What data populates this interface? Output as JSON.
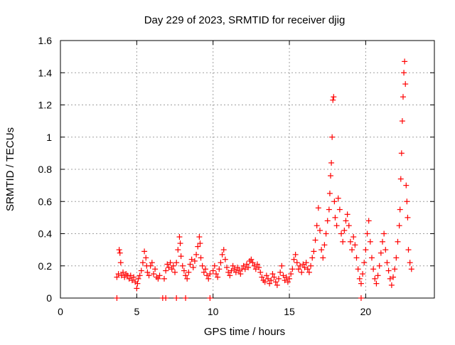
{
  "chart_data": {
    "type": "scatter",
    "title": "Day 229 of 2023, SRMTID for receiver djig",
    "xlabel": "GPS time / hours",
    "ylabel": "SRMTID / TECUs",
    "xlim": [
      0,
      24.5
    ],
    "ylim": [
      0,
      1.6
    ],
    "xticks": [
      0,
      5,
      10,
      15,
      20
    ],
    "xtick_labels": [
      "0",
      "5",
      "10",
      "15",
      "20"
    ],
    "yticks": [
      0,
      0.2,
      0.4,
      0.6,
      0.8,
      1.0,
      1.2,
      1.4,
      1.6
    ],
    "ytick_labels": [
      "0",
      "0.2",
      "0.4",
      "0.6",
      "0.8",
      "1",
      "1.2",
      "1.4",
      "1.6"
    ],
    "grid": true,
    "marker": "+",
    "color": "#ff0000",
    "series": [
      {
        "name": "SRMTID",
        "points": [
          [
            3.7,
            0.0
          ],
          [
            6.7,
            0.0
          ],
          [
            6.9,
            0.0
          ],
          [
            7.6,
            0.0
          ],
          [
            8.2,
            0.0
          ],
          [
            9.8,
            0.0
          ],
          [
            19.7,
            0.0
          ],
          [
            3.7,
            0.13
          ],
          [
            3.8,
            0.15
          ],
          [
            3.85,
            0.3
          ],
          [
            3.9,
            0.28
          ],
          [
            3.95,
            0.22
          ],
          [
            4.0,
            0.14
          ],
          [
            4.1,
            0.16
          ],
          [
            4.2,
            0.13
          ],
          [
            4.3,
            0.15
          ],
          [
            4.4,
            0.14
          ],
          [
            4.5,
            0.12
          ],
          [
            4.6,
            0.14
          ],
          [
            4.7,
            0.11
          ],
          [
            4.8,
            0.13
          ],
          [
            4.9,
            0.1
          ],
          [
            5.0,
            0.06
          ],
          [
            5.05,
            0.09
          ],
          [
            5.1,
            0.12
          ],
          [
            5.2,
            0.14
          ],
          [
            5.3,
            0.17
          ],
          [
            5.4,
            0.22
          ],
          [
            5.5,
            0.29
          ],
          [
            5.6,
            0.25
          ],
          [
            5.65,
            0.2
          ],
          [
            5.7,
            0.16
          ],
          [
            5.8,
            0.14
          ],
          [
            5.9,
            0.2
          ],
          [
            6.0,
            0.22
          ],
          [
            6.1,
            0.15
          ],
          [
            6.2,
            0.18
          ],
          [
            6.3,
            0.13
          ],
          [
            6.4,
            0.12
          ],
          [
            6.5,
            0.14
          ],
          [
            6.8,
            0.12
          ],
          [
            6.9,
            0.17
          ],
          [
            7.0,
            0.21
          ],
          [
            7.1,
            0.19
          ],
          [
            7.2,
            0.22
          ],
          [
            7.3,
            0.18
          ],
          [
            7.4,
            0.2
          ],
          [
            7.5,
            0.16
          ],
          [
            7.6,
            0.22
          ],
          [
            7.7,
            0.3
          ],
          [
            7.8,
            0.38
          ],
          [
            7.85,
            0.34
          ],
          [
            7.9,
            0.26
          ],
          [
            8.0,
            0.2
          ],
          [
            8.1,
            0.17
          ],
          [
            8.2,
            0.14
          ],
          [
            8.3,
            0.12
          ],
          [
            8.4,
            0.16
          ],
          [
            8.5,
            0.21
          ],
          [
            8.6,
            0.24
          ],
          [
            8.7,
            0.19
          ],
          [
            8.8,
            0.23
          ],
          [
            8.9,
            0.27
          ],
          [
            9.0,
            0.32
          ],
          [
            9.1,
            0.38
          ],
          [
            9.15,
            0.34
          ],
          [
            9.2,
            0.25
          ],
          [
            9.3,
            0.2
          ],
          [
            9.4,
            0.16
          ],
          [
            9.5,
            0.18
          ],
          [
            9.6,
            0.14
          ],
          [
            9.7,
            0.12
          ],
          [
            9.8,
            0.15
          ],
          [
            10.0,
            0.17
          ],
          [
            10.1,
            0.2
          ],
          [
            10.2,
            0.15
          ],
          [
            10.3,
            0.13
          ],
          [
            10.4,
            0.18
          ],
          [
            10.5,
            0.22
          ],
          [
            10.6,
            0.27
          ],
          [
            10.7,
            0.3
          ],
          [
            10.8,
            0.24
          ],
          [
            10.9,
            0.19
          ],
          [
            11.0,
            0.16
          ],
          [
            11.1,
            0.14
          ],
          [
            11.2,
            0.17
          ],
          [
            11.3,
            0.2
          ],
          [
            11.4,
            0.18
          ],
          [
            11.5,
            0.16
          ],
          [
            11.6,
            0.19
          ],
          [
            11.7,
            0.17
          ],
          [
            11.8,
            0.15
          ],
          [
            11.9,
            0.18
          ],
          [
            12.0,
            0.2
          ],
          [
            12.1,
            0.18
          ],
          [
            12.2,
            0.21
          ],
          [
            12.3,
            0.19
          ],
          [
            12.4,
            0.23
          ],
          [
            12.5,
            0.24
          ],
          [
            12.6,
            0.22
          ],
          [
            12.7,
            0.2
          ],
          [
            12.8,
            0.18
          ],
          [
            12.9,
            0.21
          ],
          [
            13.0,
            0.19
          ],
          [
            13.1,
            0.16
          ],
          [
            13.2,
            0.13
          ],
          [
            13.3,
            0.11
          ],
          [
            13.4,
            0.1
          ],
          [
            13.5,
            0.14
          ],
          [
            13.6,
            0.12
          ],
          [
            13.7,
            0.09
          ],
          [
            13.8,
            0.11
          ],
          [
            13.9,
            0.15
          ],
          [
            14.0,
            0.13
          ],
          [
            14.1,
            0.1
          ],
          [
            14.2,
            0.08
          ],
          [
            14.3,
            0.12
          ],
          [
            14.4,
            0.16
          ],
          [
            14.5,
            0.2
          ],
          [
            14.6,
            0.14
          ],
          [
            14.7,
            0.11
          ],
          [
            14.8,
            0.13
          ],
          [
            14.9,
            0.1
          ],
          [
            15.0,
            0.12
          ],
          [
            15.1,
            0.15
          ],
          [
            15.2,
            0.18
          ],
          [
            15.3,
            0.24
          ],
          [
            15.4,
            0.27
          ],
          [
            15.5,
            0.22
          ],
          [
            15.6,
            0.18
          ],
          [
            15.7,
            0.2
          ],
          [
            15.8,
            0.16
          ],
          [
            15.9,
            0.21
          ],
          [
            16.0,
            0.19
          ],
          [
            16.1,
            0.22
          ],
          [
            16.2,
            0.18
          ],
          [
            16.3,
            0.16
          ],
          [
            16.4,
            0.2
          ],
          [
            16.5,
            0.25
          ],
          [
            16.6,
            0.29
          ],
          [
            16.7,
            0.36
          ],
          [
            16.8,
            0.45
          ],
          [
            16.9,
            0.56
          ],
          [
            17.0,
            0.42
          ],
          [
            17.1,
            0.3
          ],
          [
            17.2,
            0.25
          ],
          [
            17.3,
            0.33
          ],
          [
            17.4,
            0.4
          ],
          [
            17.5,
            0.48
          ],
          [
            17.6,
            0.55
          ],
          [
            17.65,
            0.65
          ],
          [
            17.7,
            0.76
          ],
          [
            17.75,
            0.84
          ],
          [
            17.8,
            1.0
          ],
          [
            17.85,
            1.23
          ],
          [
            17.9,
            1.25
          ],
          [
            17.95,
            0.6
          ],
          [
            18.0,
            0.5
          ],
          [
            18.1,
            0.45
          ],
          [
            18.2,
            0.62
          ],
          [
            18.3,
            0.55
          ],
          [
            18.4,
            0.4
          ],
          [
            18.5,
            0.35
          ],
          [
            18.6,
            0.42
          ],
          [
            18.7,
            0.48
          ],
          [
            18.8,
            0.52
          ],
          [
            18.9,
            0.45
          ],
          [
            19.0,
            0.35
          ],
          [
            19.1,
            0.3
          ],
          [
            19.2,
            0.38
          ],
          [
            19.3,
            0.33
          ],
          [
            19.4,
            0.25
          ],
          [
            19.5,
            0.18
          ],
          [
            19.6,
            0.12
          ],
          [
            19.7,
            0.09
          ],
          [
            19.8,
            0.15
          ],
          [
            19.9,
            0.22
          ],
          [
            20.0,
            0.3
          ],
          [
            20.1,
            0.4
          ],
          [
            20.2,
            0.48
          ],
          [
            20.3,
            0.35
          ],
          [
            20.4,
            0.25
          ],
          [
            20.5,
            0.18
          ],
          [
            20.6,
            0.12
          ],
          [
            20.7,
            0.09
          ],
          [
            20.8,
            0.14
          ],
          [
            20.9,
            0.2
          ],
          [
            21.0,
            0.28
          ],
          [
            21.1,
            0.35
          ],
          [
            21.2,
            0.4
          ],
          [
            21.3,
            0.3
          ],
          [
            21.4,
            0.22
          ],
          [
            21.5,
            0.17
          ],
          [
            21.6,
            0.12
          ],
          [
            21.7,
            0.08
          ],
          [
            21.8,
            0.13
          ],
          [
            21.9,
            0.18
          ],
          [
            22.0,
            0.25
          ],
          [
            22.1,
            0.35
          ],
          [
            22.2,
            0.45
          ],
          [
            22.25,
            0.55
          ],
          [
            22.3,
            0.74
          ],
          [
            22.35,
            0.9
          ],
          [
            22.4,
            1.1
          ],
          [
            22.45,
            1.25
          ],
          [
            22.5,
            1.4
          ],
          [
            22.55,
            1.47
          ],
          [
            22.6,
            1.33
          ],
          [
            22.65,
            0.7
          ],
          [
            22.7,
            0.6
          ],
          [
            22.75,
            0.5
          ],
          [
            22.8,
            0.3
          ],
          [
            22.9,
            0.22
          ],
          [
            23.0,
            0.18
          ]
        ]
      }
    ]
  }
}
